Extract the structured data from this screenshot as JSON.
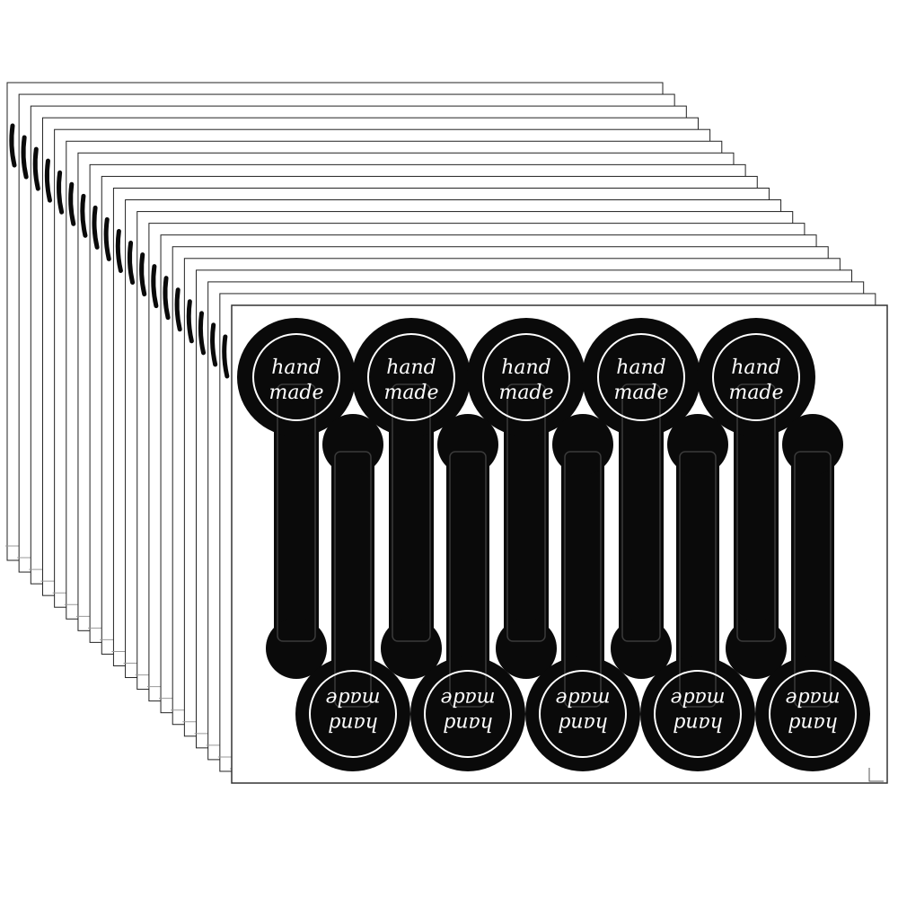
{
  "product": {
    "label_line1": "hand",
    "label_line2": "made",
    "stacked_sheet_count": 20,
    "stickers_per_row": 5
  },
  "colors": {
    "background": "#ffffff",
    "sticker": "#0a0a0a",
    "sticker_text": "#ffffff",
    "sheet_edge": "#222222"
  }
}
